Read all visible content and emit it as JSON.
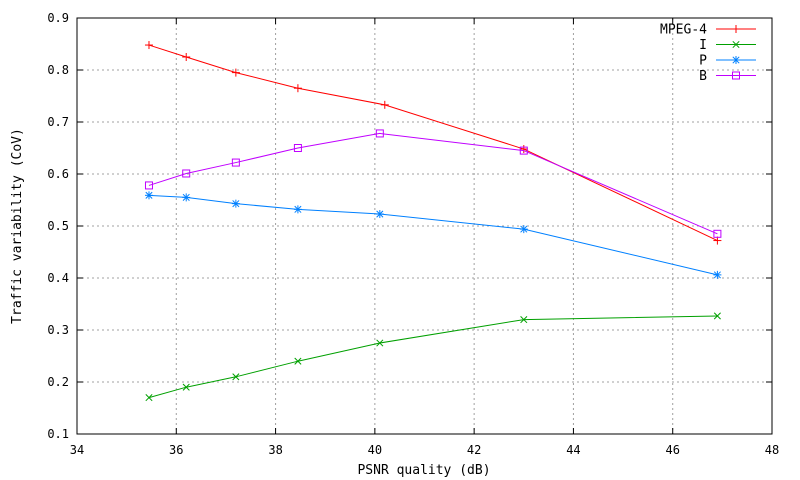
{
  "chart_data": {
    "type": "line",
    "title": "",
    "xlabel": "PSNR quality (dB)",
    "ylabel": "Traffic variability (CoV)",
    "xlim": [
      34,
      48
    ],
    "ylim": [
      0.1,
      0.9
    ],
    "xticks": [
      34,
      36,
      38,
      40,
      42,
      44,
      46,
      48
    ],
    "yticks": [
      0.1,
      0.2,
      0.3,
      0.4,
      0.5,
      0.6,
      0.7,
      0.8,
      0.9
    ],
    "grid": true,
    "legend_position": "top-right",
    "series": [
      {
        "name": "MPEG-4",
        "color": "#ff0000",
        "marker": "plus",
        "points": [
          [
            35.45,
            0.848
          ],
          [
            36.2,
            0.825
          ],
          [
            37.2,
            0.795
          ],
          [
            38.45,
            0.765
          ],
          [
            40.2,
            0.733
          ],
          [
            43.0,
            0.648
          ],
          [
            46.9,
            0.472
          ]
        ]
      },
      {
        "name": "I",
        "color": "#00a000",
        "marker": "cross",
        "points": [
          [
            35.45,
            0.17
          ],
          [
            36.2,
            0.19
          ],
          [
            37.2,
            0.21
          ],
          [
            38.45,
            0.24
          ],
          [
            40.1,
            0.275
          ],
          [
            43.0,
            0.32
          ],
          [
            46.9,
            0.327
          ]
        ]
      },
      {
        "name": "P",
        "color": "#0080ff",
        "marker": "star",
        "points": [
          [
            35.45,
            0.559
          ],
          [
            36.2,
            0.555
          ],
          [
            37.2,
            0.543
          ],
          [
            38.45,
            0.532
          ],
          [
            40.1,
            0.523
          ],
          [
            43.0,
            0.494
          ],
          [
            46.9,
            0.406
          ]
        ]
      },
      {
        "name": "B",
        "color": "#c000ff",
        "marker": "square",
        "points": [
          [
            35.45,
            0.578
          ],
          [
            36.2,
            0.601
          ],
          [
            37.2,
            0.622
          ],
          [
            38.45,
            0.65
          ],
          [
            40.1,
            0.678
          ],
          [
            43.0,
            0.645
          ],
          [
            46.9,
            0.485
          ]
        ]
      }
    ]
  }
}
